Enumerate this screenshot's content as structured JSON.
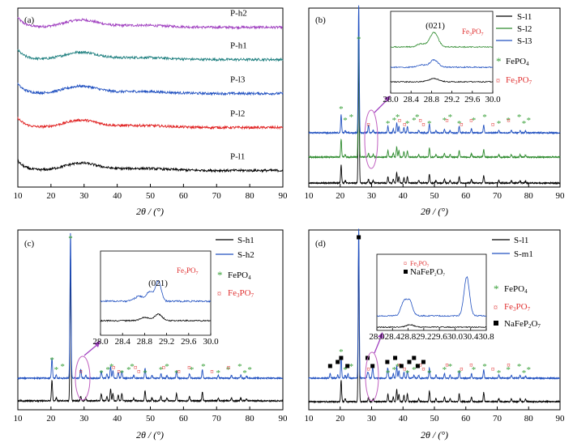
{
  "chart_data": [
    {
      "panel": "(a)",
      "type": "line",
      "xlabel": "2θ / (°)",
      "xlim": [
        10,
        90
      ],
      "xticks": [
        10,
        20,
        30,
        40,
        50,
        60,
        70,
        80,
        90
      ],
      "series": [
        {
          "name": "P-h2",
          "color": "#a040c0",
          "baseline": 0.87
        },
        {
          "name": "P-h1",
          "color": "#208080",
          "baseline": 0.69
        },
        {
          "name": "P-l3",
          "color": "#2050c0",
          "baseline": 0.5
        },
        {
          "name": "P-l2",
          "color": "#e02020",
          "baseline": 0.31
        },
        {
          "name": "P-l1",
          "color": "#000000",
          "baseline": 0.07
        }
      ],
      "amorphous_hump_center": 29
    },
    {
      "panel": "(b)",
      "type": "line",
      "xlabel": "2θ / (°)",
      "xlim": [
        10,
        90
      ],
      "xticks": [
        10,
        20,
        30,
        40,
        50,
        60,
        70,
        80,
        90
      ],
      "legend": [
        {
          "name": "S-l1",
          "color": "#000000"
        },
        {
          "name": "S-l2",
          "color": "#2e8b2e"
        },
        {
          "name": "S-l3",
          "color": "#2050c0"
        }
      ],
      "markers": [
        {
          "symbol": "*",
          "label": "FePO4"
        },
        {
          "symbol": "¤",
          "label": "Fe3PO7"
        }
      ],
      "inset": {
        "xlim": [
          28.0,
          30.0
        ],
        "xticks": [
          "28.0",
          "28.4",
          "28.8",
          "29.2",
          "29.6",
          "30.0"
        ],
        "peak_label": "(021)",
        "phase_label": "Fe3PO7"
      }
    },
    {
      "panel": "(c)",
      "type": "line",
      "xlabel": "2θ / (°)",
      "xlim": [
        10,
        90
      ],
      "xticks": [
        10,
        20,
        30,
        40,
        50,
        60,
        70,
        80,
        90
      ],
      "legend": [
        {
          "name": "S-h1",
          "color": "#000000"
        },
        {
          "name": "S-h2",
          "color": "#2050c0"
        }
      ],
      "markers": [
        {
          "symbol": "*",
          "label": "FePO4"
        },
        {
          "symbol": "¤",
          "label": "Fe3PO7"
        }
      ],
      "inset": {
        "xlim": [
          28.0,
          30.0
        ],
        "xticks": [
          "28.0",
          "28.4",
          "28.8",
          "29.2",
          "29.6",
          "30.0"
        ],
        "peak_label": "(021)",
        "phase_label": "Fe3PO7"
      }
    },
    {
      "panel": "(d)",
      "type": "line",
      "xlabel": "2θ / (°)",
      "xlim": [
        10,
        90
      ],
      "xticks": [
        10,
        20,
        30,
        40,
        50,
        60,
        70,
        80,
        90
      ],
      "legend": [
        {
          "name": "S-l1",
          "color": "#000000"
        },
        {
          "name": "S-m1",
          "color": "#2050c0"
        }
      ],
      "markers": [
        {
          "symbol": "*",
          "label": "FePO4"
        },
        {
          "symbol": "¤",
          "label": "Fe3PO7"
        },
        {
          "symbol": "■",
          "label": "NaFeP2O7"
        }
      ],
      "inset": {
        "xlim": [
          28.0,
          30.8
        ],
        "xticks": [
          "28.0",
          "28.4",
          "28.8",
          "29.2",
          "29.6",
          "30.0",
          "30.4",
          "30.8"
        ],
        "legend": [
          "Fe3PO7",
          "NaFeP2O7"
        ]
      }
    }
  ]
}
